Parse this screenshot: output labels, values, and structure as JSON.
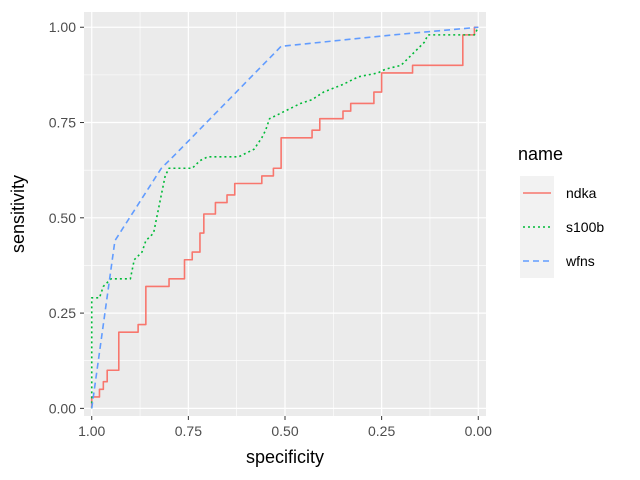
{
  "chart_data": {
    "type": "line",
    "xlabel": "specificity",
    "ylabel": "sensitivity",
    "x_reversed": true,
    "xlim": [
      1.02,
      -0.02
    ],
    "ylim": [
      -0.02,
      1.04
    ],
    "x_ticks": [
      1.0,
      0.75,
      0.5,
      0.25,
      0.0
    ],
    "x_tick_labels": [
      "1.00",
      "0.75",
      "0.50",
      "0.25",
      "0.00"
    ],
    "y_ticks": [
      0.0,
      0.25,
      0.5,
      0.75,
      1.0
    ],
    "y_tick_labels": [
      "0.00",
      "0.25",
      "0.50",
      "0.75",
      "1.00"
    ],
    "grid": true,
    "legend": {
      "title": "name",
      "position": "right"
    },
    "series": [
      {
        "name": "ndka",
        "color": "#F8766D",
        "linetype": "solid",
        "points": [
          [
            1.0,
            0.0
          ],
          [
            1.0,
            0.03
          ],
          [
            0.98,
            0.03
          ],
          [
            0.98,
            0.05
          ],
          [
            0.97,
            0.05
          ],
          [
            0.97,
            0.07
          ],
          [
            0.96,
            0.07
          ],
          [
            0.96,
            0.1
          ],
          [
            0.93,
            0.1
          ],
          [
            0.93,
            0.2
          ],
          [
            0.88,
            0.2
          ],
          [
            0.88,
            0.22
          ],
          [
            0.86,
            0.22
          ],
          [
            0.86,
            0.32
          ],
          [
            0.8,
            0.32
          ],
          [
            0.8,
            0.34
          ],
          [
            0.76,
            0.34
          ],
          [
            0.76,
            0.39
          ],
          [
            0.74,
            0.39
          ],
          [
            0.74,
            0.41
          ],
          [
            0.72,
            0.41
          ],
          [
            0.72,
            0.46
          ],
          [
            0.71,
            0.46
          ],
          [
            0.71,
            0.51
          ],
          [
            0.68,
            0.51
          ],
          [
            0.68,
            0.54
          ],
          [
            0.65,
            0.54
          ],
          [
            0.65,
            0.56
          ],
          [
            0.63,
            0.56
          ],
          [
            0.63,
            0.59
          ],
          [
            0.56,
            0.59
          ],
          [
            0.56,
            0.61
          ],
          [
            0.53,
            0.61
          ],
          [
            0.53,
            0.63
          ],
          [
            0.51,
            0.63
          ],
          [
            0.51,
            0.71
          ],
          [
            0.43,
            0.71
          ],
          [
            0.43,
            0.73
          ],
          [
            0.41,
            0.73
          ],
          [
            0.41,
            0.76
          ],
          [
            0.35,
            0.76
          ],
          [
            0.35,
            0.78
          ],
          [
            0.33,
            0.78
          ],
          [
            0.33,
            0.8
          ],
          [
            0.27,
            0.8
          ],
          [
            0.27,
            0.83
          ],
          [
            0.25,
            0.83
          ],
          [
            0.25,
            0.88
          ],
          [
            0.17,
            0.88
          ],
          [
            0.17,
            0.9
          ],
          [
            0.04,
            0.9
          ],
          [
            0.04,
            0.98
          ],
          [
            0.01,
            0.98
          ],
          [
            0.01,
            1.0
          ],
          [
            0.0,
            1.0
          ]
        ]
      },
      {
        "name": "s100b",
        "color": "#00BA38",
        "linetype": "dotted",
        "points": [
          [
            1.0,
            0.0
          ],
          [
            1.0,
            0.29
          ],
          [
            0.98,
            0.29
          ],
          [
            0.97,
            0.32
          ],
          [
            0.95,
            0.34
          ],
          [
            0.9,
            0.34
          ],
          [
            0.89,
            0.39
          ],
          [
            0.87,
            0.41
          ],
          [
            0.86,
            0.44
          ],
          [
            0.84,
            0.46
          ],
          [
            0.83,
            0.51
          ],
          [
            0.82,
            0.56
          ],
          [
            0.81,
            0.61
          ],
          [
            0.8,
            0.63
          ],
          [
            0.74,
            0.63
          ],
          [
            0.72,
            0.65
          ],
          [
            0.7,
            0.66
          ],
          [
            0.62,
            0.66
          ],
          [
            0.58,
            0.68
          ],
          [
            0.56,
            0.71
          ],
          [
            0.55,
            0.73
          ],
          [
            0.54,
            0.76
          ],
          [
            0.5,
            0.78
          ],
          [
            0.46,
            0.8
          ],
          [
            0.43,
            0.81
          ],
          [
            0.4,
            0.83
          ],
          [
            0.35,
            0.85
          ],
          [
            0.31,
            0.87
          ],
          [
            0.26,
            0.88
          ],
          [
            0.24,
            0.89
          ],
          [
            0.2,
            0.9
          ],
          [
            0.18,
            0.92
          ],
          [
            0.14,
            0.96
          ],
          [
            0.13,
            0.98
          ],
          [
            0.03,
            0.98
          ],
          [
            0.01,
            0.98
          ],
          [
            0.0,
            1.0
          ]
        ]
      },
      {
        "name": "wfns",
        "color": "#619CFF",
        "linetype": "dashed",
        "points": [
          [
            1.0,
            0.0
          ],
          [
            0.94,
            0.44
          ],
          [
            0.82,
            0.63
          ],
          [
            0.79,
            0.66
          ],
          [
            0.51,
            0.95
          ],
          [
            0.22,
            0.98
          ],
          [
            0.0,
            1.0
          ]
        ]
      }
    ]
  }
}
